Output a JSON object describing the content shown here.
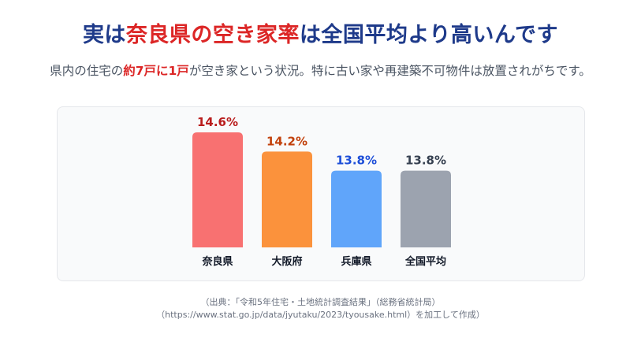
{
  "headline": {
    "part1": "実は",
    "highlight": "奈良県の空き家率",
    "part2": "は全国平均より高いんです"
  },
  "subtitle": {
    "part1": "県内の住宅の",
    "highlight": "約7戸に1戸",
    "part2": "が空き家という状況。特に古い家や再建築不可物件は放置されがちです。"
  },
  "chart_data": {
    "type": "bar",
    "categories": [
      "奈良県",
      "大阪府",
      "兵庫県",
      "全国平均"
    ],
    "values": [
      14.6,
      14.2,
      13.8,
      13.8
    ],
    "value_labels": [
      "14.6%",
      "14.2%",
      "13.8%",
      "13.8%"
    ],
    "bar_colors": [
      "#f87171",
      "#fb923c",
      "#60a5fa",
      "#9ca3af"
    ],
    "label_colors": [
      "#b91c1c",
      "#c2410c",
      "#1d4ed8",
      "#374151"
    ],
    "title": "",
    "xlabel": "",
    "ylabel": "",
    "grid": false
  },
  "source": {
    "line1": "（出典：「令和5年住宅・土地統計調査結果」（総務省統計局）",
    "line2": "（https://www.stat.go.jp/data/jyutaku/2023/tyousake.html）を加工して作成）"
  }
}
